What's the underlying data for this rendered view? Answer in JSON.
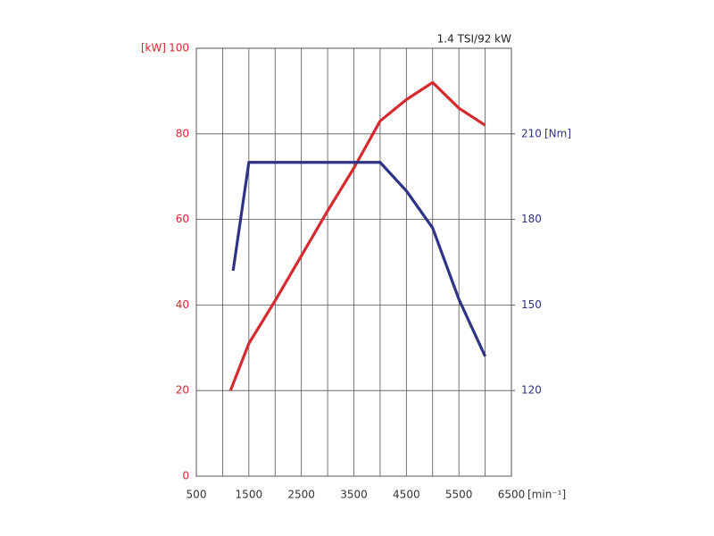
{
  "chart_data": {
    "type": "line",
    "title": "1.4 TSI/92 kW",
    "x_unit": "[min⁻¹]",
    "y_unit": "[kW]",
    "y2_unit": "[Nm]",
    "xlim": [
      500,
      6500
    ],
    "xticks": [
      500,
      1500,
      2500,
      3500,
      4500,
      5500,
      6500
    ],
    "xminor": [
      1000,
      2000,
      3000,
      4000,
      5000,
      6000
    ],
    "ylim": [
      0,
      100
    ],
    "yticks": [
      0,
      20,
      40,
      60,
      80,
      100
    ],
    "y2lim": [
      90,
      240
    ],
    "y2ticks": [
      120,
      150,
      180,
      210
    ],
    "grid": true,
    "series": [
      {
        "color": "#d42a30",
        "x": [
          1150,
          1500,
          2000,
          2500,
          3000,
          3500,
          4000,
          4500,
          5000,
          5500,
          6000
        ],
        "values": [
          20,
          31,
          41,
          51.5,
          62,
          72,
          83,
          88,
          92,
          86,
          82
        ]
      },
      {
        "color": "#2e3386",
        "axis": "y2",
        "x": [
          1200,
          1500,
          2000,
          2500,
          3000,
          3500,
          4000,
          4500,
          5000,
          5500,
          6000
        ],
        "values": [
          162,
          200,
          200,
          200,
          200,
          200,
          200,
          190,
          177,
          152,
          132
        ]
      }
    ]
  }
}
